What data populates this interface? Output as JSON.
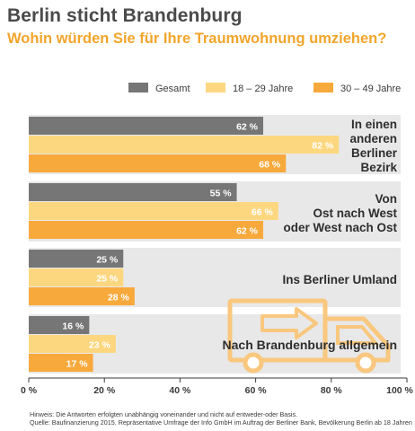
{
  "title": "Berlin sticht Brandenburg",
  "subtitle": "Wohin würden Sie für Ihre Traumwohnung umziehen?",
  "colors": {
    "gesamt": "#767676",
    "age18_29": "#fdd780",
    "age30_49": "#f8a93c",
    "band": "#e8e8e8",
    "value_text": "#ffffff",
    "truck": "#f9c77e"
  },
  "icons": {
    "truck": "truck-icon",
    "arrow": "arrow-right-icon"
  },
  "chart_data": {
    "type": "bar",
    "orientation": "horizontal",
    "categories": [
      "In einen anderen Berliner Bezirk",
      "Von Ost nach West oder West nach Ost",
      "Ins Berliner Umland",
      "Nach Brandenburg allgemein"
    ],
    "category_label_lines": [
      [
        "In einen",
        "anderen",
        "Berliner",
        "Bezirk"
      ],
      [
        "Von",
        "Ost nach West",
        "oder West nach Ost"
      ],
      [
        "Ins Berliner Umland"
      ],
      [
        "Nach Brandenburg allgemein"
      ]
    ],
    "series": [
      {
        "name": "Gesamt",
        "values": [
          62,
          55,
          25,
          16
        ],
        "labels": [
          "62 %",
          "55 %",
          "25 %",
          "16 %"
        ]
      },
      {
        "name": "18 – 29 Jahre",
        "values": [
          82,
          66,
          25,
          23
        ],
        "labels": [
          "82 %",
          "66 %",
          "25 %",
          "23 %"
        ]
      },
      {
        "name": "30 – 49 Jahre",
        "values": [
          68,
          62,
          28,
          17
        ],
        "labels": [
          "68 %",
          "62 %",
          "28 %",
          "17 %"
        ]
      }
    ],
    "xlim": [
      0,
      100
    ],
    "x_ticks": [
      0,
      20,
      40,
      60,
      80,
      100
    ],
    "x_tick_labels": [
      "0 %",
      "20 %",
      "40 %",
      "60 %",
      "80 %",
      "100 %"
    ],
    "legend_position": "top-right",
    "grid": false
  },
  "footnotes": [
    "Hinweis: Die Antworten erfolgten unabhängig voneinander und nicht auf entweder-oder Basis.",
    "Quelle: Baufinanzierung 2015. Repräsentative Umfrage der Info GmbH im Auftrag der Berliner Bank, Bevölkerung Berlin ab 18 Jahren"
  ]
}
